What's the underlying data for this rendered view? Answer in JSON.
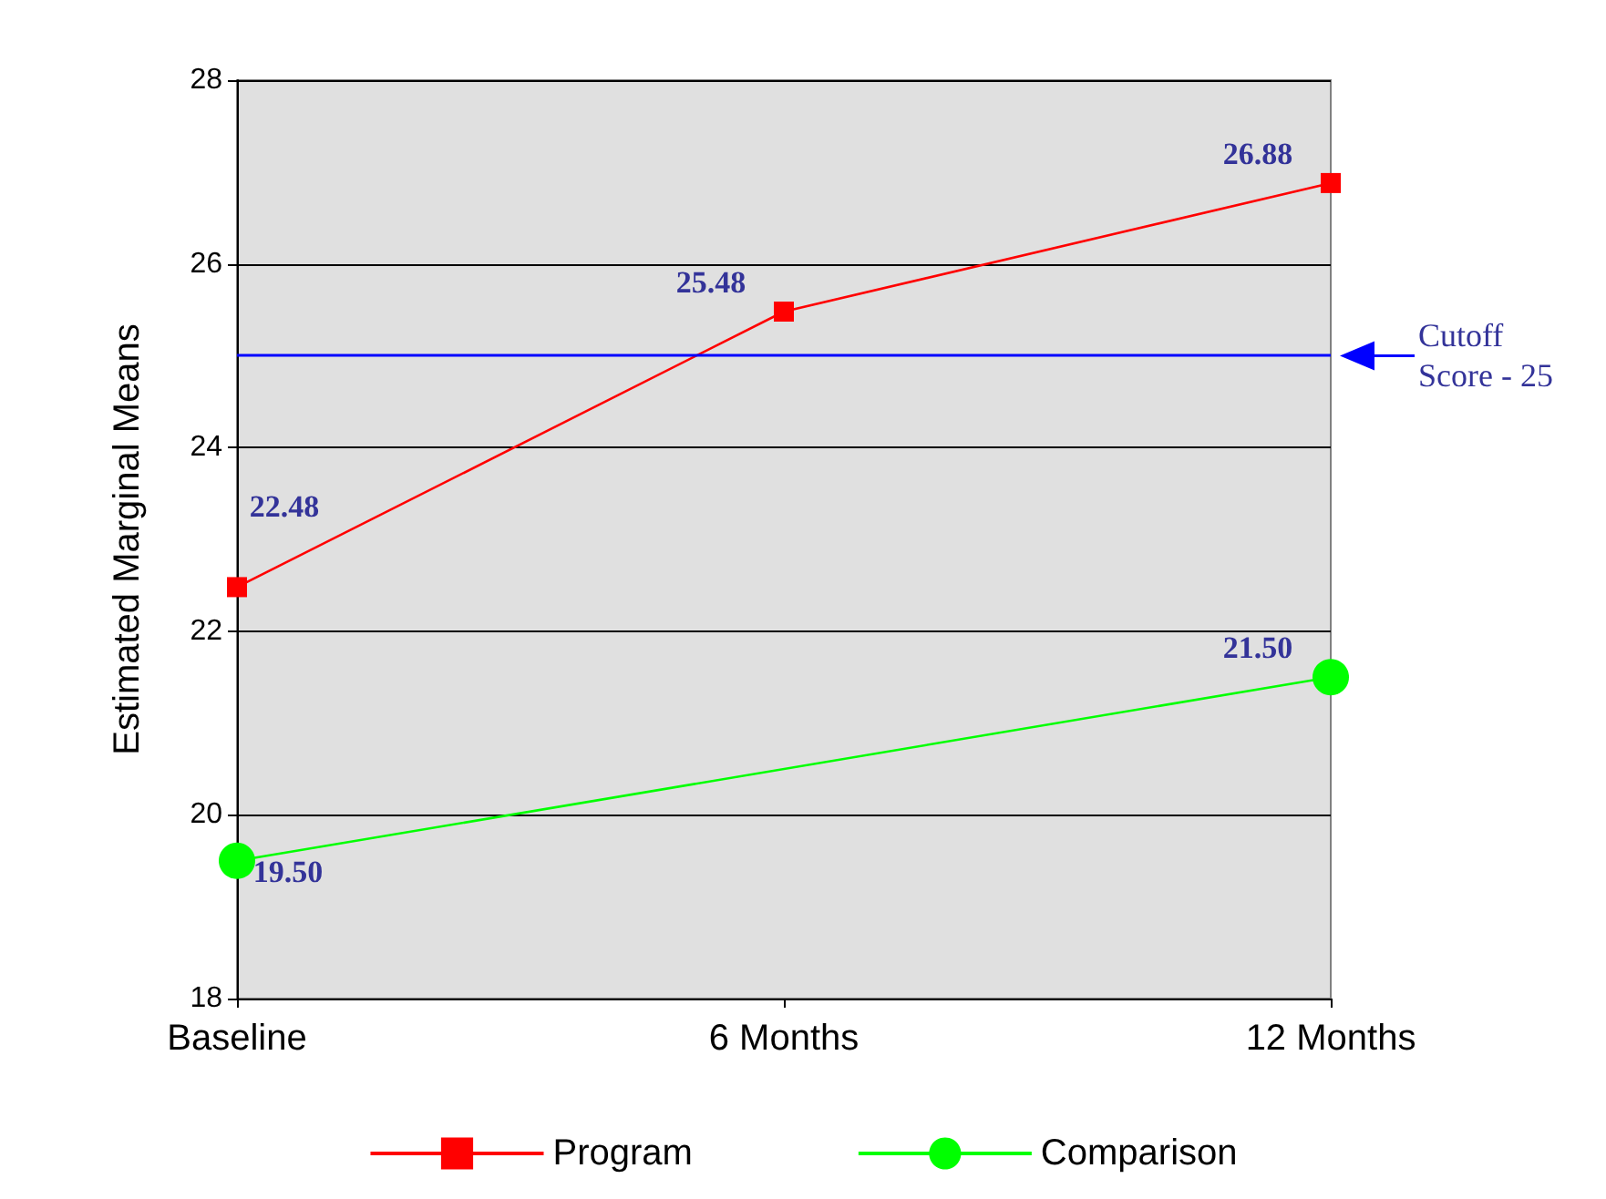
{
  "chart_data": {
    "type": "line",
    "ylabel": "Estimated Marginal Means",
    "categories": [
      "Baseline",
      "6 Months",
      "12 Months"
    ],
    "series": [
      {
        "name": "Program",
        "color": "#ff0000",
        "marker": "square",
        "values": [
          22.48,
          25.48,
          26.88
        ],
        "value_labels": [
          "22.48",
          "25.48",
          "26.88"
        ]
      },
      {
        "name": "Comparison",
        "color": "#00ff00",
        "marker": "circle",
        "values": [
          19.5,
          null,
          21.5
        ],
        "value_labels": [
          "19.50",
          null,
          "21.50"
        ]
      }
    ],
    "ylim": [
      18,
      28
    ],
    "yticks": [
      18,
      20,
      22,
      24,
      26,
      28
    ],
    "grid": "y",
    "legend": "bottom",
    "ref_lines": [
      {
        "axis": "y",
        "value": 25,
        "label": "Cutoff Score - 25",
        "color": "#0000ff"
      }
    ]
  }
}
